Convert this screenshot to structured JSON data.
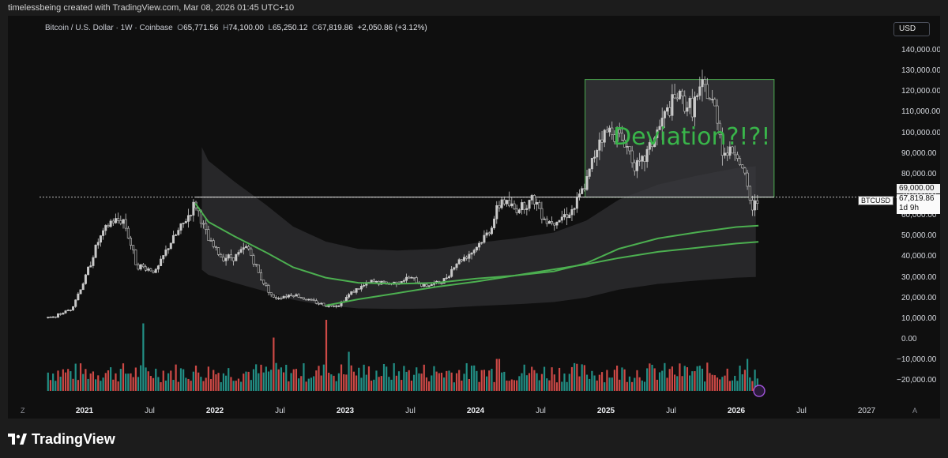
{
  "credit": "timelessbeing created with TradingView.com, Mar 08, 2026 01:45 UTC+10",
  "symbol": {
    "name": "Bitcoin / U.S. Dollar · 1W · Coinbase",
    "open_label": "O",
    "open": "65,771.56",
    "high_label": "H",
    "high": "74,100.00",
    "low_label": "L",
    "low": "65,250.12",
    "close_label": "C",
    "close": "67,819.86",
    "change": "+2,050.86 (+3.12%)"
  },
  "currency_button": "USD",
  "ticker_tag": "BTCUSD",
  "level_flag": "69,000.00",
  "price_flag": {
    "price": "67,819.86",
    "countdown": "1d 9h"
  },
  "annotation": "Deviation?!?!",
  "brand": "TradingView",
  "colors": {
    "background": "#0f0f0f",
    "candle": "#c9c9c9",
    "ema_line": "#4caf50",
    "box_stroke": "#4caf50",
    "vol_up": "#26a69a",
    "vol_down": "#ef5350",
    "annotation": "#39b54a"
  },
  "chart_data": {
    "type": "candlestick",
    "timeframe": "1W",
    "y_axis_ticks": [
      "140,000.00",
      "130,000.00",
      "120,000.00",
      "110,000.00",
      "100,000.00",
      "90,000.00",
      "80,000.00",
      "70,000.00",
      "60,000.00",
      "50,000.00",
      "40,000.00",
      "30,000.00",
      "20,000.00",
      "10,000.00",
      "0.00",
      "−10,000.00",
      "−20,000.00"
    ],
    "y_tick_values": [
      140000,
      130000,
      120000,
      110000,
      100000,
      90000,
      80000,
      70000,
      60000,
      50000,
      40000,
      30000,
      20000,
      10000,
      0,
      -10000,
      -20000
    ],
    "x_axis_ticks": [
      {
        "label": "2021",
        "t": 2021.0,
        "year": true
      },
      {
        "label": "Jul",
        "t": 2021.5
      },
      {
        "label": "2022",
        "t": 2022.0,
        "year": true
      },
      {
        "label": "Jul",
        "t": 2022.5
      },
      {
        "label": "2023",
        "t": 2023.0,
        "year": true
      },
      {
        "label": "Jul",
        "t": 2023.5
      },
      {
        "label": "2024",
        "t": 2024.0,
        "year": true
      },
      {
        "label": "Jul",
        "t": 2024.5
      },
      {
        "label": "2025",
        "t": 2025.0,
        "year": true
      },
      {
        "label": "Jul",
        "t": 2025.5
      },
      {
        "label": "2026",
        "t": 2026.0,
        "year": true
      },
      {
        "label": "Jul",
        "t": 2026.5
      },
      {
        "label": "2027",
        "t": 2027.0
      }
    ],
    "axis_left_marker": "Z",
    "axis_right_marker": "A",
    "price_path": [
      [
        2020.75,
        10500
      ],
      [
        2020.9,
        15000
      ],
      [
        2021.0,
        29000
      ],
      [
        2021.1,
        47000
      ],
      [
        2021.2,
        57000
      ],
      [
        2021.3,
        58000
      ],
      [
        2021.4,
        36000
      ],
      [
        2021.55,
        33000
      ],
      [
        2021.65,
        46000
      ],
      [
        2021.75,
        55000
      ],
      [
        2021.85,
        66000
      ],
      [
        2021.95,
        48000
      ],
      [
        2022.05,
        40000
      ],
      [
        2022.15,
        40000
      ],
      [
        2022.25,
        45000
      ],
      [
        2022.35,
        30000
      ],
      [
        2022.45,
        20000
      ],
      [
        2022.6,
        22000
      ],
      [
        2022.7,
        19500
      ],
      [
        2022.85,
        16500
      ],
      [
        2022.95,
        16800
      ],
      [
        2023.05,
        23000
      ],
      [
        2023.2,
        28000
      ],
      [
        2023.35,
        27000
      ],
      [
        2023.5,
        30000
      ],
      [
        2023.6,
        26000
      ],
      [
        2023.75,
        28000
      ],
      [
        2023.85,
        37000
      ],
      [
        2023.98,
        43000
      ],
      [
        2024.1,
        52000
      ],
      [
        2024.2,
        68000
      ],
      [
        2024.3,
        63000
      ],
      [
        2024.45,
        68000
      ],
      [
        2024.55,
        57000
      ],
      [
        2024.65,
        59000
      ],
      [
        2024.75,
        63000
      ],
      [
        2024.85,
        76000
      ],
      [
        2024.95,
        98000
      ],
      [
        2025.05,
        102000
      ],
      [
        2025.15,
        95000
      ],
      [
        2025.25,
        82000
      ],
      [
        2025.35,
        95000
      ],
      [
        2025.45,
        108000
      ],
      [
        2025.55,
        118000
      ],
      [
        2025.65,
        112000
      ],
      [
        2025.75,
        122000
      ],
      [
        2025.85,
        110000
      ],
      [
        2025.9,
        90000
      ],
      [
        2026.0,
        92000
      ],
      [
        2026.07,
        77000
      ],
      [
        2026.12,
        63000
      ],
      [
        2026.17,
        67800
      ]
    ],
    "ema_short": [
      [
        2021.85,
        66000
      ],
      [
        2021.95,
        57000
      ],
      [
        2022.15,
        50000
      ],
      [
        2022.4,
        42000
      ],
      [
        2022.6,
        35000
      ],
      [
        2022.85,
        30000
      ],
      [
        2023.1,
        27500
      ],
      [
        2023.4,
        27000
      ],
      [
        2023.7,
        27500
      ],
      [
        2024.0,
        29500
      ],
      [
        2024.3,
        31000
      ],
      [
        2024.6,
        33000
      ],
      [
        2024.85,
        37000
      ],
      [
        2025.1,
        44000
      ],
      [
        2025.4,
        49000
      ],
      [
        2025.7,
        52000
      ],
      [
        2026.0,
        54500
      ],
      [
        2026.17,
        55200
      ]
    ],
    "ema_long": [
      [
        2022.85,
        16500
      ],
      [
        2023.1,
        19500
      ],
      [
        2023.4,
        22500
      ],
      [
        2023.7,
        25500
      ],
      [
        2024.0,
        28000
      ],
      [
        2024.3,
        31000
      ],
      [
        2024.6,
        34000
      ],
      [
        2024.85,
        36500
      ],
      [
        2025.1,
        39500
      ],
      [
        2025.4,
        42500
      ],
      [
        2025.7,
        44500
      ],
      [
        2026.0,
        46500
      ],
      [
        2026.17,
        47300
      ]
    ],
    "level_line": 69000,
    "annotation_box": {
      "t_start": 2024.84,
      "t_end": 2026.29,
      "price_top": 126000,
      "price_bottom": 69000
    },
    "volume_spikes": [
      {
        "t": 2021.45,
        "rel": 0.95,
        "dir": "down"
      },
      {
        "t": 2022.45,
        "rel": 0.75,
        "dir": "down"
      },
      {
        "t": 2022.85,
        "rel": 1.0,
        "dir": "down"
      },
      {
        "t": 2023.03,
        "rel": 0.55,
        "dir": "up"
      },
      {
        "t": 2024.17,
        "rel": 0.45,
        "dir": "up"
      },
      {
        "t": 2026.08,
        "rel": 0.45,
        "dir": "down"
      }
    ]
  }
}
